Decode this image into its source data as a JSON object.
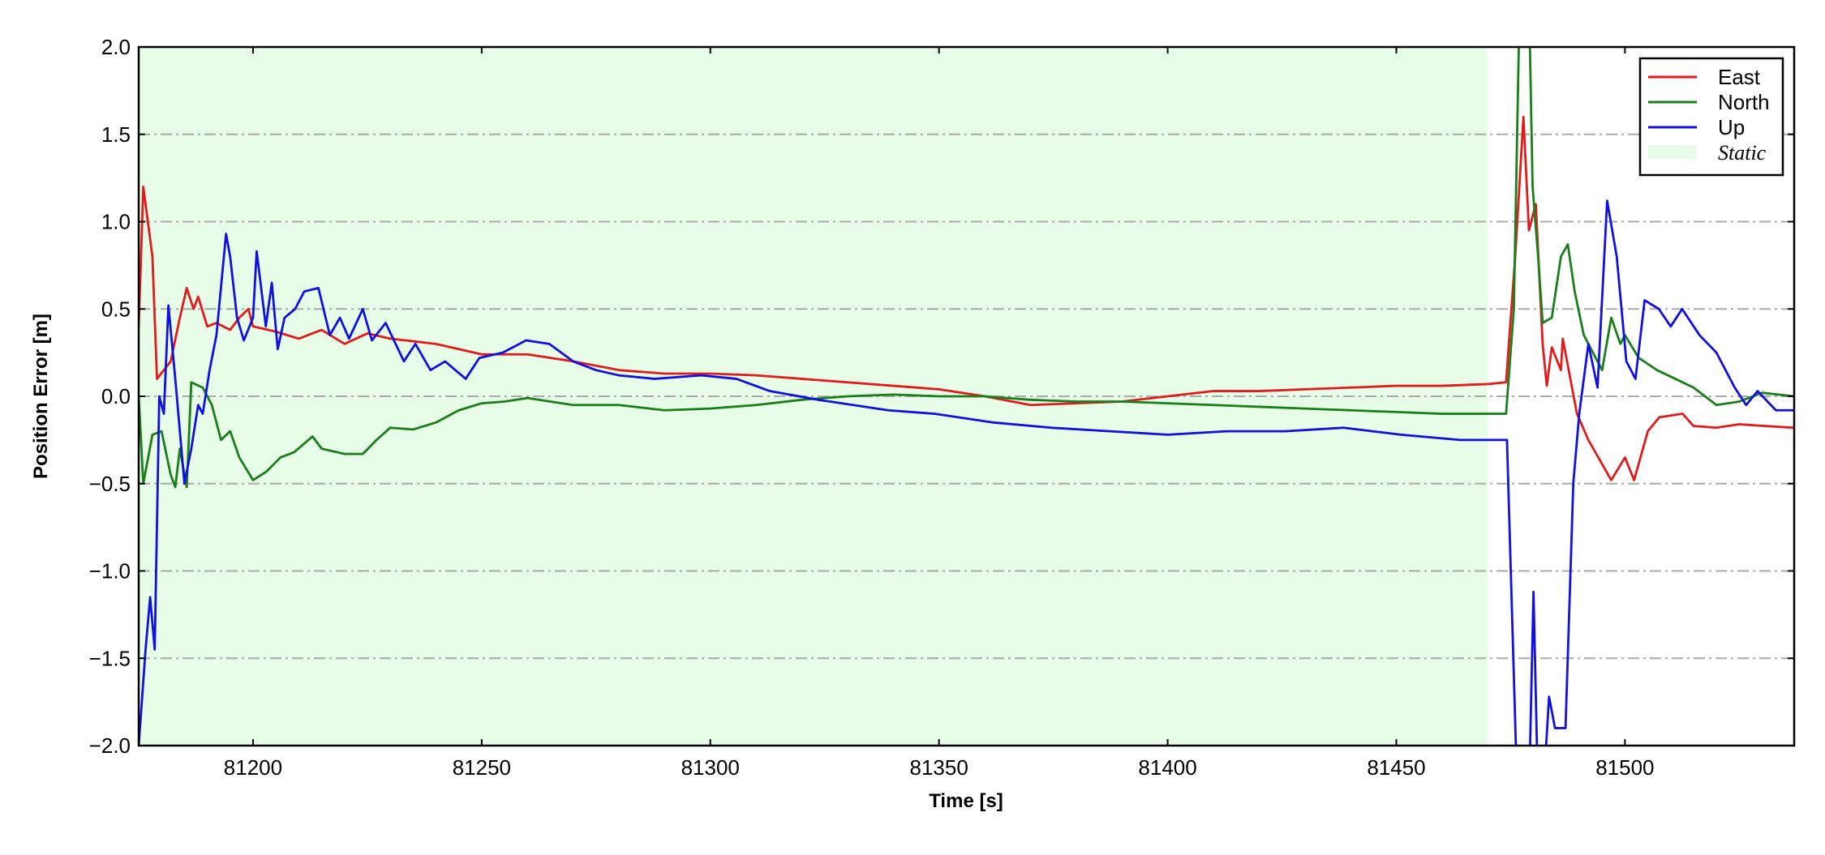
{
  "chart_data": {
    "type": "line",
    "xlabel": "Time [s]",
    "ylabel": "Position Error [m]",
    "xlim": [
      81175,
      81537
    ],
    "ylim": [
      -2.0,
      2.0
    ],
    "xticks": [
      81200,
      81250,
      81300,
      81350,
      81400,
      81450,
      81500
    ],
    "yticks": [
      {
        "value": -2.0,
        "label": "−2.0"
      },
      {
        "value": -1.5,
        "label": "−1.5"
      },
      {
        "value": -1.0,
        "label": "−1.0"
      },
      {
        "value": -0.5,
        "label": "−0.5"
      },
      {
        "value": 0.0,
        "label": "0.0"
      },
      {
        "value": 0.5,
        "label": "0.5"
      },
      {
        "value": 1.0,
        "label": "1.0"
      },
      {
        "value": 1.5,
        "label": "1.5"
      },
      {
        "value": 2.0,
        "label": "2.0"
      }
    ],
    "grid": true,
    "legend": "upper right",
    "span": {
      "name": "Static",
      "x": [
        81175,
        81470
      ],
      "color": "#e8fde8"
    },
    "series": [
      {
        "name": "East",
        "color": "#e31a1c",
        "x": [
          81175,
          81176,
          81178,
          81179,
          81182,
          81184,
          81185.5,
          81187,
          81188,
          81190,
          81192,
          81195,
          81197,
          81199,
          81200,
          81205,
          81210,
          81215,
          81220,
          81225,
          81230,
          81240,
          81250,
          81260,
          81270,
          81280,
          81290,
          81300,
          81310,
          81320,
          81330,
          81340,
          81350,
          81360,
          81370,
          81380,
          81390,
          81400,
          81410,
          81420,
          81430,
          81440,
          81450,
          81460,
          81470,
          81474,
          81476,
          81477.8,
          81479,
          81480.5,
          81482,
          81482.9,
          81484,
          81486,
          81486.4,
          81489.5,
          81492,
          81497,
          81500,
          81502,
          81505,
          81507.5,
          81512.6,
          81515,
          81520,
          81525,
          81530.6,
          81537
        ],
        "values": [
          0.4,
          1.2,
          0.8,
          0.1,
          0.2,
          0.45,
          0.62,
          0.5,
          0.57,
          0.4,
          0.42,
          0.38,
          0.45,
          0.5,
          0.4,
          0.37,
          0.33,
          0.38,
          0.3,
          0.36,
          0.33,
          0.3,
          0.24,
          0.24,
          0.2,
          0.15,
          0.13,
          0.13,
          0.12,
          0.1,
          0.08,
          0.06,
          0.04,
          0.0,
          -0.05,
          -0.04,
          -0.03,
          0.0,
          0.03,
          0.03,
          0.04,
          0.05,
          0.06,
          0.06,
          0.07,
          0.08,
          0.8,
          1.6,
          0.95,
          1.1,
          0.3,
          0.06,
          0.28,
          0.15,
          0.33,
          -0.1,
          -0.25,
          -0.48,
          -0.35,
          -0.48,
          -0.2,
          -0.12,
          -0.1,
          -0.17,
          -0.18,
          -0.16,
          -0.17,
          -0.18
        ]
      },
      {
        "name": "North",
        "color": "#1a7f1a",
        "x": [
          81175,
          81176,
          81178,
          81180,
          81182,
          81183,
          81184,
          81185.5,
          81186.5,
          81189,
          81191,
          81193,
          81195,
          81197,
          81200,
          81203,
          81206,
          81209,
          81213,
          81215,
          81220,
          81224,
          81227,
          81230,
          81235,
          81240,
          81245,
          81250,
          81255,
          81260,
          81265,
          81270,
          81280,
          81290,
          81300,
          81310,
          81320,
          81330,
          81340,
          81350,
          81360,
          81370,
          81380,
          81390,
          81400,
          81410,
          81420,
          81430,
          81440,
          81450,
          81460,
          81470,
          81474,
          81475.7,
          81477,
          81479,
          81479.8,
          81481,
          81482,
          81484,
          81486,
          81487.5,
          81489,
          81491,
          81493,
          81495,
          81497,
          81499,
          81500,
          81503,
          81507,
          81511,
          81515,
          81520,
          81525,
          81530,
          81537
        ],
        "values": [
          0.0,
          -0.5,
          -0.22,
          -0.2,
          -0.45,
          -0.52,
          -0.3,
          -0.52,
          0.08,
          0.05,
          -0.05,
          -0.25,
          -0.2,
          -0.35,
          -0.48,
          -0.43,
          -0.35,
          -0.32,
          -0.23,
          -0.3,
          -0.33,
          -0.33,
          -0.25,
          -0.18,
          -0.19,
          -0.15,
          -0.08,
          -0.04,
          -0.03,
          -0.01,
          -0.03,
          -0.05,
          -0.05,
          -0.08,
          -0.07,
          -0.05,
          -0.02,
          0.0,
          0.01,
          0.0,
          0.0,
          -0.02,
          -0.03,
          -0.03,
          -0.04,
          -0.05,
          -0.06,
          -0.07,
          -0.08,
          -0.09,
          -0.1,
          -0.1,
          -0.1,
          0.5,
          2.3,
          2.3,
          1.2,
          0.8,
          0.42,
          0.45,
          0.8,
          0.87,
          0.6,
          0.35,
          0.25,
          0.15,
          0.45,
          0.3,
          0.35,
          0.22,
          0.15,
          0.1,
          0.05,
          -0.05,
          -0.03,
          0.02,
          0.0
        ]
      },
      {
        "name": "Up",
        "color": "#1010e0",
        "x": [
          81175,
          81176.5,
          81177.5,
          81178.5,
          81179.5,
          81180.5,
          81181.5,
          81183,
          81184,
          81185,
          81186.5,
          81188,
          81189,
          81190.5,
          81192,
          81194.1,
          81195,
          81196.5,
          81198,
          81200,
          81200.8,
          81202.8,
          81204.1,
          81205.4,
          81206.9,
          81209.2,
          81211.2,
          81214.3,
          81216.8,
          81219,
          81221,
          81224,
          81226,
          81229,
          81233,
          81235.5,
          81238.8,
          81242,
          81246.5,
          81249.5,
          81254.6,
          81259.7,
          81264.8,
          81270,
          81275,
          81280,
          81287.8,
          81298,
          81305.7,
          81313,
          81323.6,
          81338.9,
          81349,
          81361.9,
          81374.6,
          81387.4,
          81400,
          81413,
          81425.7,
          81438.4,
          81451,
          81464,
          81474.2,
          81476.7,
          81479,
          81480,
          81481,
          81482.3,
          81483.4,
          81484.7,
          81487,
          81488.7,
          81490,
          81492,
          81494,
          81496.1,
          81498.2,
          81500.3,
          81502.3,
          81504.3,
          81507.4,
          81510,
          81512.5,
          81516.3,
          81520,
          81524,
          81526.5,
          81529,
          81533,
          81537
        ],
        "values": [
          -2.0,
          -1.45,
          -1.15,
          -1.45,
          0.0,
          -0.1,
          0.52,
          0.1,
          -0.2,
          -0.5,
          -0.3,
          -0.05,
          -0.1,
          0.15,
          0.35,
          0.93,
          0.8,
          0.45,
          0.32,
          0.45,
          0.83,
          0.4,
          0.65,
          0.27,
          0.45,
          0.5,
          0.6,
          0.62,
          0.35,
          0.45,
          0.33,
          0.5,
          0.32,
          0.42,
          0.2,
          0.3,
          0.15,
          0.2,
          0.1,
          0.22,
          0.25,
          0.32,
          0.3,
          0.2,
          0.15,
          0.12,
          0.1,
          0.12,
          0.1,
          0.03,
          -0.02,
          -0.08,
          -0.1,
          -0.15,
          -0.18,
          -0.2,
          -0.22,
          -0.2,
          -0.2,
          -0.18,
          -0.22,
          -0.25,
          -0.25,
          -2.5,
          -2.3,
          -1.12,
          -2.3,
          -2.2,
          -1.72,
          -1.9,
          -1.9,
          -0.5,
          -0.1,
          0.3,
          0.05,
          1.12,
          0.8,
          0.2,
          0.1,
          0.55,
          0.5,
          0.4,
          0.5,
          0.35,
          0.25,
          0.05,
          -0.05,
          0.03,
          -0.08,
          -0.08
        ]
      }
    ]
  }
}
